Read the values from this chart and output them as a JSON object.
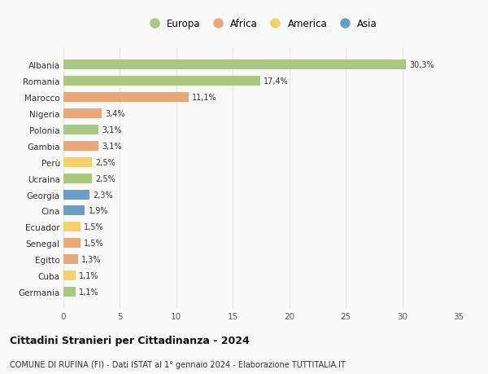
{
  "categories": [
    "Albania",
    "Romania",
    "Marocco",
    "Nigeria",
    "Polonia",
    "Gambia",
    "Perù",
    "Ucraina",
    "Georgia",
    "Cina",
    "Ecuador",
    "Senegal",
    "Egitto",
    "Cuba",
    "Germania"
  ],
  "values": [
    30.3,
    17.4,
    11.1,
    3.4,
    3.1,
    3.1,
    2.5,
    2.5,
    2.3,
    1.9,
    1.5,
    1.5,
    1.3,
    1.1,
    1.1
  ],
  "labels": [
    "30,3%",
    "17,4%",
    "11,1%",
    "3,4%",
    "3,1%",
    "3,1%",
    "2,5%",
    "2,5%",
    "2,3%",
    "1,9%",
    "1,5%",
    "1,5%",
    "1,3%",
    "1,1%",
    "1,1%"
  ],
  "continents": [
    "Europa",
    "Europa",
    "Africa",
    "Africa",
    "Europa",
    "Africa",
    "America",
    "Europa",
    "Asia",
    "Asia",
    "America",
    "Africa",
    "Africa",
    "America",
    "Europa"
  ],
  "colors": {
    "Europa": "#a8c97f",
    "Africa": "#e8a87c",
    "America": "#f5d06e",
    "Asia": "#6a9ec5"
  },
  "legend_order": [
    "Europa",
    "Africa",
    "America",
    "Asia"
  ],
  "title": "Cittadini Stranieri per Cittadinanza - 2024",
  "subtitle": "COMUNE DI RUFINA (FI) - Dati ISTAT al 1° gennaio 2024 - Elaborazione TUTTITALIA.IT",
  "xlim": [
    0,
    35
  ],
  "xticks": [
    0,
    5,
    10,
    15,
    20,
    25,
    30,
    35
  ],
  "background_color": "#f9f9f9",
  "grid_color": "#e8e8e8",
  "bar_height": 0.6
}
